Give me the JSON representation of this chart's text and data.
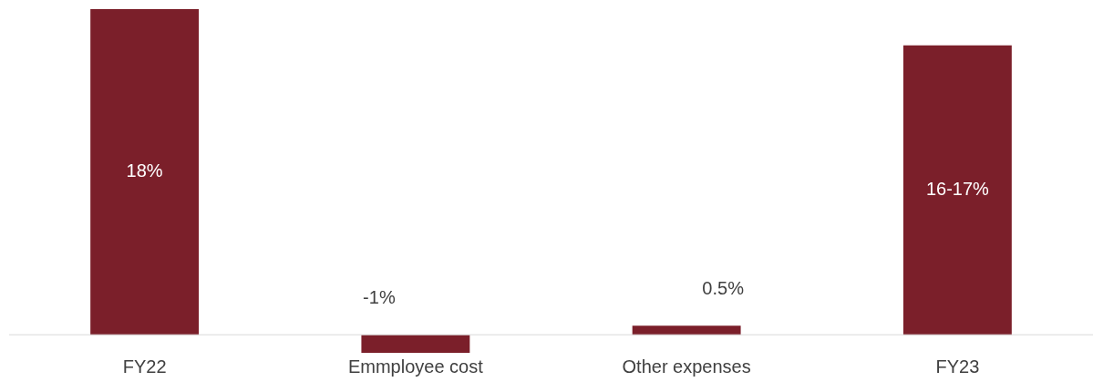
{
  "chart_data": {
    "type": "bar",
    "categories": [
      "FY22",
      "Emmployee cost",
      "Other expenses",
      "FY23"
    ],
    "values": [
      18,
      -1,
      0.5,
      16
    ],
    "color": "#7b1f2a",
    "value_labels": [
      "18%",
      "-1%",
      "0.5%",
      "16-17%"
    ],
    "grid": false,
    "legend": false
  }
}
